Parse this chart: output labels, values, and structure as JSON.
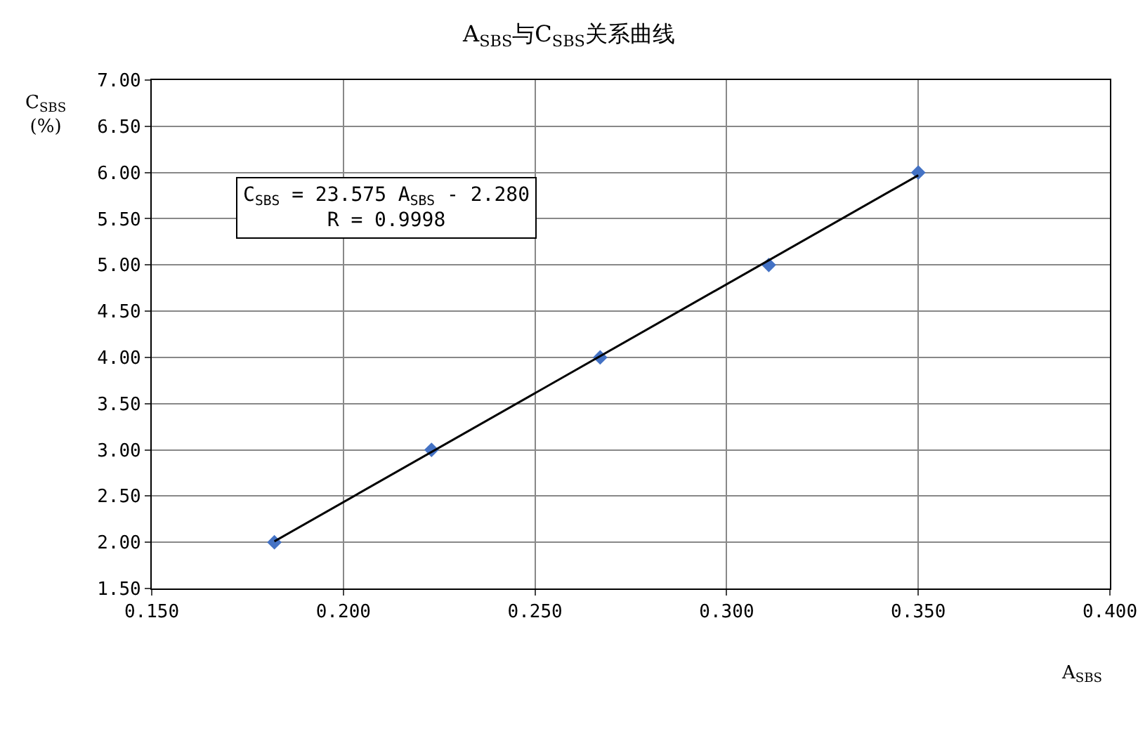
{
  "chart_data": {
    "type": "scatter",
    "title": "A$_{SBS}$与C$_{SBS}$关系曲线",
    "xlabel": "A$_{SBS}$",
    "ylabel": "C$_{SBS}$\n(%)",
    "x": [
      0.182,
      0.223,
      0.267,
      0.311,
      0.35
    ],
    "series": [
      {
        "color": "#4472c4",
        "values": [
          2.0,
          3.0,
          4.0,
          5.0,
          6.0
        ]
      },
      {
        "type": "line",
        "color": "#000000",
        "marker": "none",
        "x": [
          0.182,
          0.35
        ],
        "values": [
          2.01,
          5.97
        ]
      }
    ],
    "annotations": [
      "C$_{SBS}$ = 23.575 A$_{SBS}$ - 2.280\nR = 0.9998"
    ],
    "xlim": [
      0.15,
      0.4
    ],
    "xticks": [
      {
        "value": 0.15,
        "label": "0.150"
      },
      {
        "value": 0.2,
        "label": "0.200"
      },
      {
        "value": 0.25,
        "label": "0.250"
      },
      {
        "value": 0.3,
        "label": "0.300"
      },
      {
        "value": 0.35,
        "label": "0.350"
      },
      {
        "value": 0.4,
        "label": "0.400"
      }
    ],
    "ylim": [
      1.5,
      7.0
    ],
    "yticks": [
      {
        "value": 1.5,
        "label": "1.50"
      },
      {
        "value": 2,
        "label": "2.00"
      },
      {
        "value": 2.5,
        "label": "2.50"
      },
      {
        "value": 3,
        "label": "3.00"
      },
      {
        "value": 3.5,
        "label": "3.50"
      },
      {
        "value": 4,
        "label": "4.00"
      },
      {
        "value": 4.5,
        "label": "4.50"
      },
      {
        "value": 5,
        "label": "5.00"
      },
      {
        "value": 5.5,
        "label": "5.50"
      },
      {
        "value": 6,
        "label": "6.00"
      },
      {
        "value": 6.5,
        "label": "6.50"
      },
      {
        "value": 7,
        "label": "7.00"
      }
    ],
    "grid": true,
    "marker": "diamond"
  }
}
